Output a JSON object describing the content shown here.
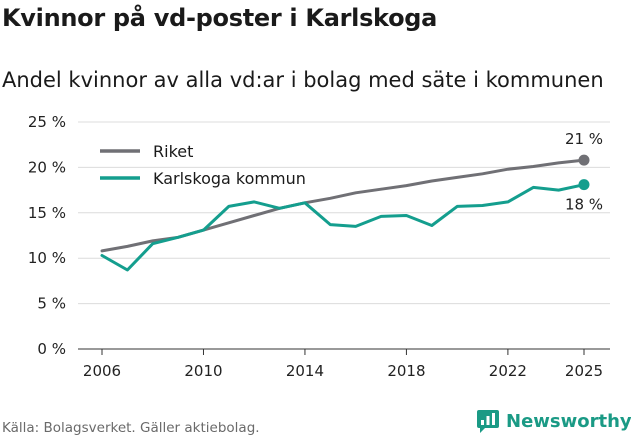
{
  "title": "Kvinnor på vd-poster i Karlskoga",
  "subtitle": "Andel kvinnor av alla vd:ar i bolag med säte i kommunen",
  "source": "Källa: Bolagsverket. Gäller aktiebolag.",
  "brand": "Newsworthy",
  "colors": {
    "riket": "#707075",
    "karlskoga": "#149e8e",
    "grid": "#dcdcdc",
    "axis": "#333333",
    "brand": "#1a9a85"
  },
  "chart_data": {
    "type": "line",
    "title": "Kvinnor på vd-poster i Karlskoga",
    "subtitle": "Andel kvinnor av alla vd:ar i bolag med säte i kommunen",
    "xlabel": "",
    "ylabel": "",
    "x": [
      2006,
      2007,
      2008,
      2009,
      2010,
      2011,
      2012,
      2013,
      2014,
      2015,
      2016,
      2017,
      2018,
      2019,
      2020,
      2021,
      2022,
      2023,
      2024,
      2025
    ],
    "xlim": [
      2006,
      2025
    ],
    "x_ticks": [
      2006,
      2010,
      2014,
      2018,
      2022,
      2025
    ],
    "ylim": [
      0,
      25
    ],
    "y_ticks": [
      0,
      5,
      10,
      15,
      20,
      25
    ],
    "y_tick_labels": [
      "0 %",
      "5 %",
      "10 %",
      "15 %",
      "20 %",
      "25 %"
    ],
    "grid": true,
    "legend_position": "top-left",
    "series": [
      {
        "name": "Riket",
        "color_key": "riket",
        "values": [
          10.8,
          11.3,
          11.9,
          12.3,
          13.1,
          13.9,
          14.7,
          15.5,
          16.1,
          16.6,
          17.2,
          17.6,
          18.0,
          18.5,
          18.9,
          19.3,
          19.8,
          20.1,
          20.5,
          20.8
        ],
        "end_label": "21 %"
      },
      {
        "name": "Karlskoga kommun",
        "color_key": "karlskoga",
        "values": [
          10.3,
          8.7,
          11.6,
          12.3,
          13.1,
          15.7,
          16.2,
          15.5,
          16.1,
          13.7,
          13.5,
          14.6,
          14.7,
          13.6,
          15.7,
          15.8,
          16.2,
          17.8,
          17.5,
          18.1
        ],
        "end_label": "18 %"
      }
    ]
  }
}
